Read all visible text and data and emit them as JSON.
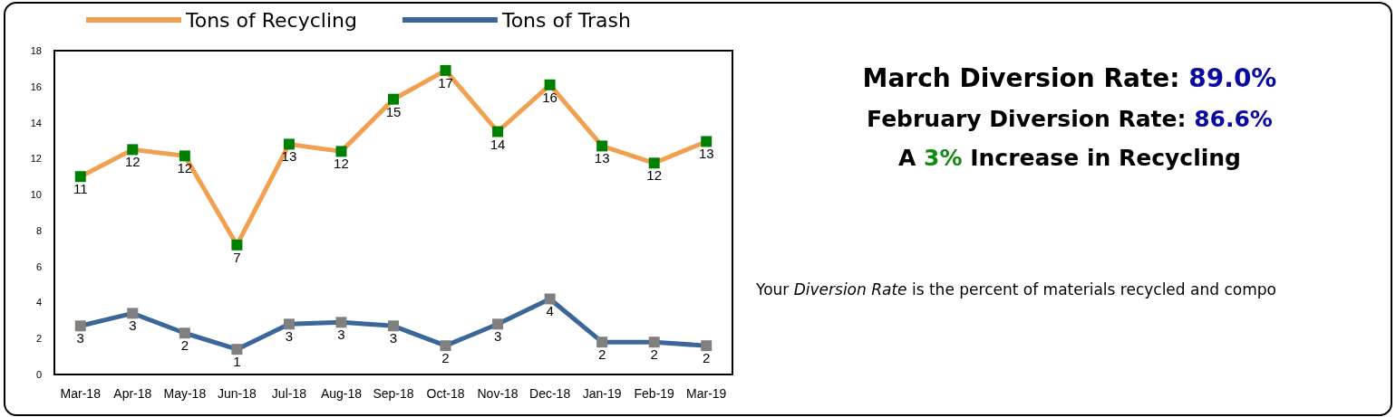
{
  "chart_data": [
    {
      "type": "line",
      "categories": [
        "Mar-18",
        "Apr-18",
        "May-18",
        "Jun-18",
        "Jul-18",
        "Aug-18",
        "Sep-18",
        "Oct-18",
        "Nov-18",
        "Dec-18",
        "Jan-19",
        "Feb-19",
        "Mar-19"
      ],
      "series": [
        {
          "name": "Tons of Recycling",
          "color": "#f0a050",
          "values": [
            11.0,
            12.5,
            12.15,
            7.2,
            12.8,
            12.4,
            15.3,
            16.9,
            13.5,
            16.1,
            12.7,
            11.75,
            12.95
          ],
          "value_labels": [
            "11",
            "12",
            "12",
            "7",
            "13",
            "12",
            "15",
            "17",
            "14",
            "16",
            "13",
            "12",
            "13"
          ]
        },
        {
          "name": "Tons of Trash",
          "color": "#3a6699",
          "values": [
            2.7,
            3.4,
            2.3,
            1.4,
            2.8,
            2.9,
            2.7,
            1.6,
            2.8,
            4.2,
            1.8,
            1.8,
            1.6
          ],
          "value_labels": [
            "3",
            "3",
            "2",
            "1",
            "3",
            "3",
            "3",
            "2",
            "3",
            "4",
            "2",
            "2",
            "2"
          ]
        }
      ],
      "ylim": [
        0,
        18
      ],
      "yticks": [
        0,
        2,
        4,
        6,
        8,
        10,
        12,
        14,
        16,
        18
      ],
      "grid": false,
      "legend": "top left",
      "marker": "square",
      "line_style": "solid"
    },
    {
      "type": "other",
      "annotations": [
        "March Diversion Rate: 89.0%",
        "February Diversion Rate: 86.6%",
        "A 3% Increase in Recycling",
        "Your Diversion Rate is the percent of materials recycled and compo"
      ]
    }
  ]
}
